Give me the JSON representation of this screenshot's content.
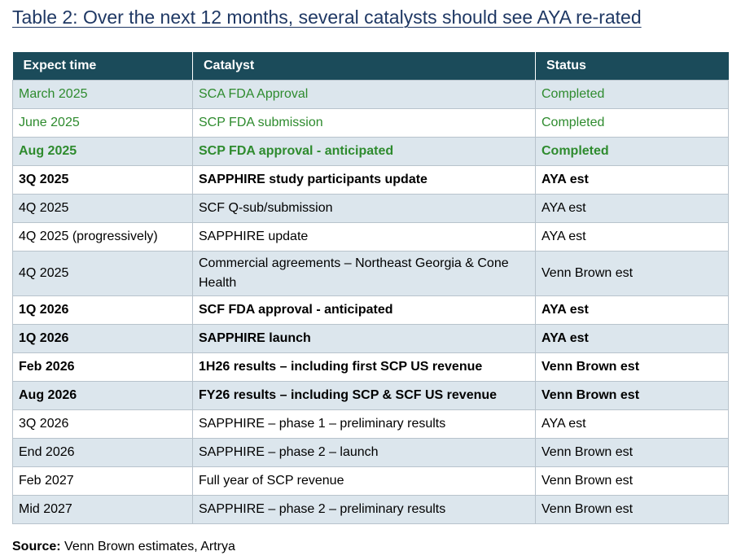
{
  "title": "Table 2: Over the next 12 months, several catalysts should see AYA re-rated",
  "table": {
    "headers": [
      "Expect time",
      "Catalyst",
      "Status"
    ],
    "rows": [
      {
        "time": "March 2025",
        "catalyst": "SCA FDA Approval",
        "status": "Completed",
        "style": "green",
        "shaded": true
      },
      {
        "time": "June 2025",
        "catalyst": "SCP FDA submission",
        "status": "Completed",
        "style": "green",
        "shaded": false
      },
      {
        "time": "Aug 2025",
        "catalyst": "SCP FDA approval - anticipated",
        "status": "Completed",
        "style": "green-bold",
        "shaded": true
      },
      {
        "time": "3Q 2025",
        "catalyst": "SAPPHIRE study participants update",
        "status": "AYA est",
        "style": "bold",
        "shaded": false
      },
      {
        "time": "4Q 2025",
        "catalyst": "SCF Q-sub/submission",
        "status": "AYA est",
        "style": "normal",
        "shaded": true
      },
      {
        "time": "4Q 2025 (progressively)",
        "catalyst": "SAPPHIRE update",
        "status": "AYA est",
        "style": "normal",
        "shaded": false
      },
      {
        "time": "4Q 2025",
        "catalyst": "Commercial agreements – Northeast Georgia & Cone Health",
        "status": "Venn Brown est",
        "style": "normal",
        "shaded": true,
        "tall": true
      },
      {
        "time": "1Q 2026",
        "catalyst": "SCF FDA approval - anticipated",
        "status": "AYA est",
        "style": "bold",
        "shaded": false
      },
      {
        "time": "1Q 2026",
        "catalyst": "SAPPHIRE launch",
        "status": "AYA est",
        "style": "bold",
        "shaded": true
      },
      {
        "time": "Feb 2026",
        "catalyst": "1H26 results – including first SCP US revenue",
        "status": "Venn Brown est",
        "style": "bold",
        "shaded": false
      },
      {
        "time": "Aug 2026",
        "catalyst": "FY26 results – including SCP & SCF US revenue",
        "status": "Venn Brown est",
        "style": "bold",
        "shaded": true
      },
      {
        "time": "3Q 2026",
        "catalyst": "SAPPHIRE – phase 1 – preliminary results",
        "status": "AYA est",
        "style": "normal",
        "shaded": false
      },
      {
        "time": "End 2026",
        "catalyst": "SAPPHIRE – phase 2 – launch",
        "status": "Venn Brown est",
        "style": "normal",
        "shaded": true
      },
      {
        "time": "Feb 2027",
        "catalyst": "Full year of SCP revenue",
        "status": "Venn Brown est",
        "style": "normal",
        "shaded": false
      },
      {
        "time": "Mid 2027",
        "catalyst": "SAPPHIRE – phase 2 – preliminary results",
        "status": "Venn Brown est",
        "style": "normal",
        "shaded": true
      }
    ]
  },
  "source": {
    "label": "Source:",
    "text": "Venn Brown estimates, Artrya"
  },
  "colors": {
    "title": "#1f3864",
    "header_bg": "#1b4b5a",
    "shaded_row": "#dce6ed",
    "green_text": "#2e8b2e"
  }
}
